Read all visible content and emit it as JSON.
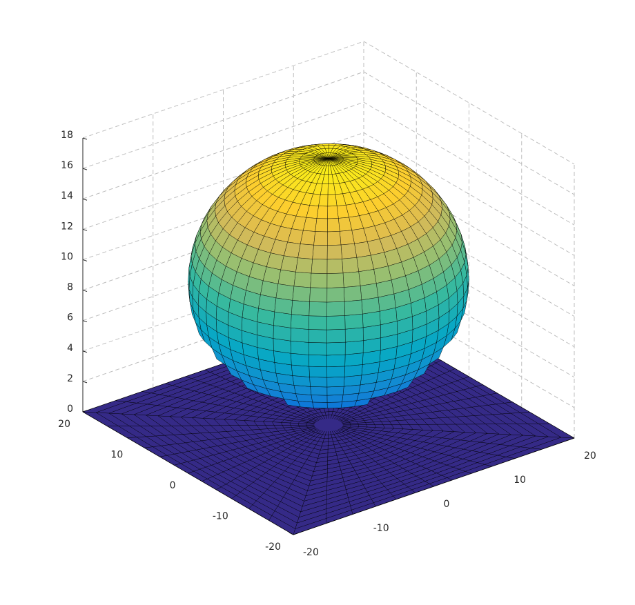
{
  "chart_data": {
    "type": "surface3d",
    "colormap": "parula",
    "surface": {
      "center": [
        0,
        0,
        9.5
      ],
      "radii": [
        16,
        16,
        8
      ]
    },
    "plane": {
      "z": 0,
      "color": "#352a87"
    },
    "xlim": [
      -20,
      20
    ],
    "ylim": [
      -20,
      20
    ],
    "zlim": [
      0,
      18
    ],
    "xticks": [
      -20,
      -10,
      0,
      10,
      20
    ],
    "yticks": [
      -20,
      -10,
      0,
      10,
      20
    ],
    "zticks": [
      0,
      2,
      4,
      6,
      8,
      10,
      12,
      14,
      16,
      18
    ],
    "grid": true
  }
}
